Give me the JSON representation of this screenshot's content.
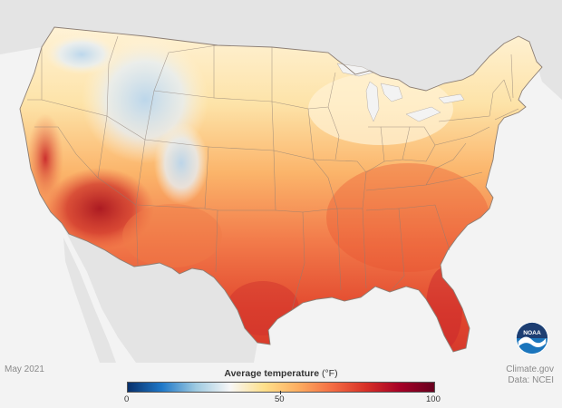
{
  "map": {
    "date": "May 2021",
    "credit_line1": "Climate.gov",
    "credit_line2": "Data: NCEI",
    "logo_text": "NOAA"
  },
  "legend": {
    "title": "Average temperature",
    "unit": "(°F)",
    "min_label": "0",
    "mid_label": "50",
    "max_label": "100",
    "min": 0,
    "mid": 50,
    "max": 100,
    "colors": [
      "#08306b",
      "#1f78c8",
      "#9ecae1",
      "#f7f7f7",
      "#fee08b",
      "#fdae61",
      "#f46d43",
      "#d73027",
      "#a50026",
      "#67001f"
    ]
  },
  "colors": {
    "land_background": "#e4e4e4",
    "ocean": "#f3f3f3",
    "state_border": "#8c7e74",
    "noaa_blue": "#1b75bc",
    "noaa_navy": "#1d3e72"
  }
}
